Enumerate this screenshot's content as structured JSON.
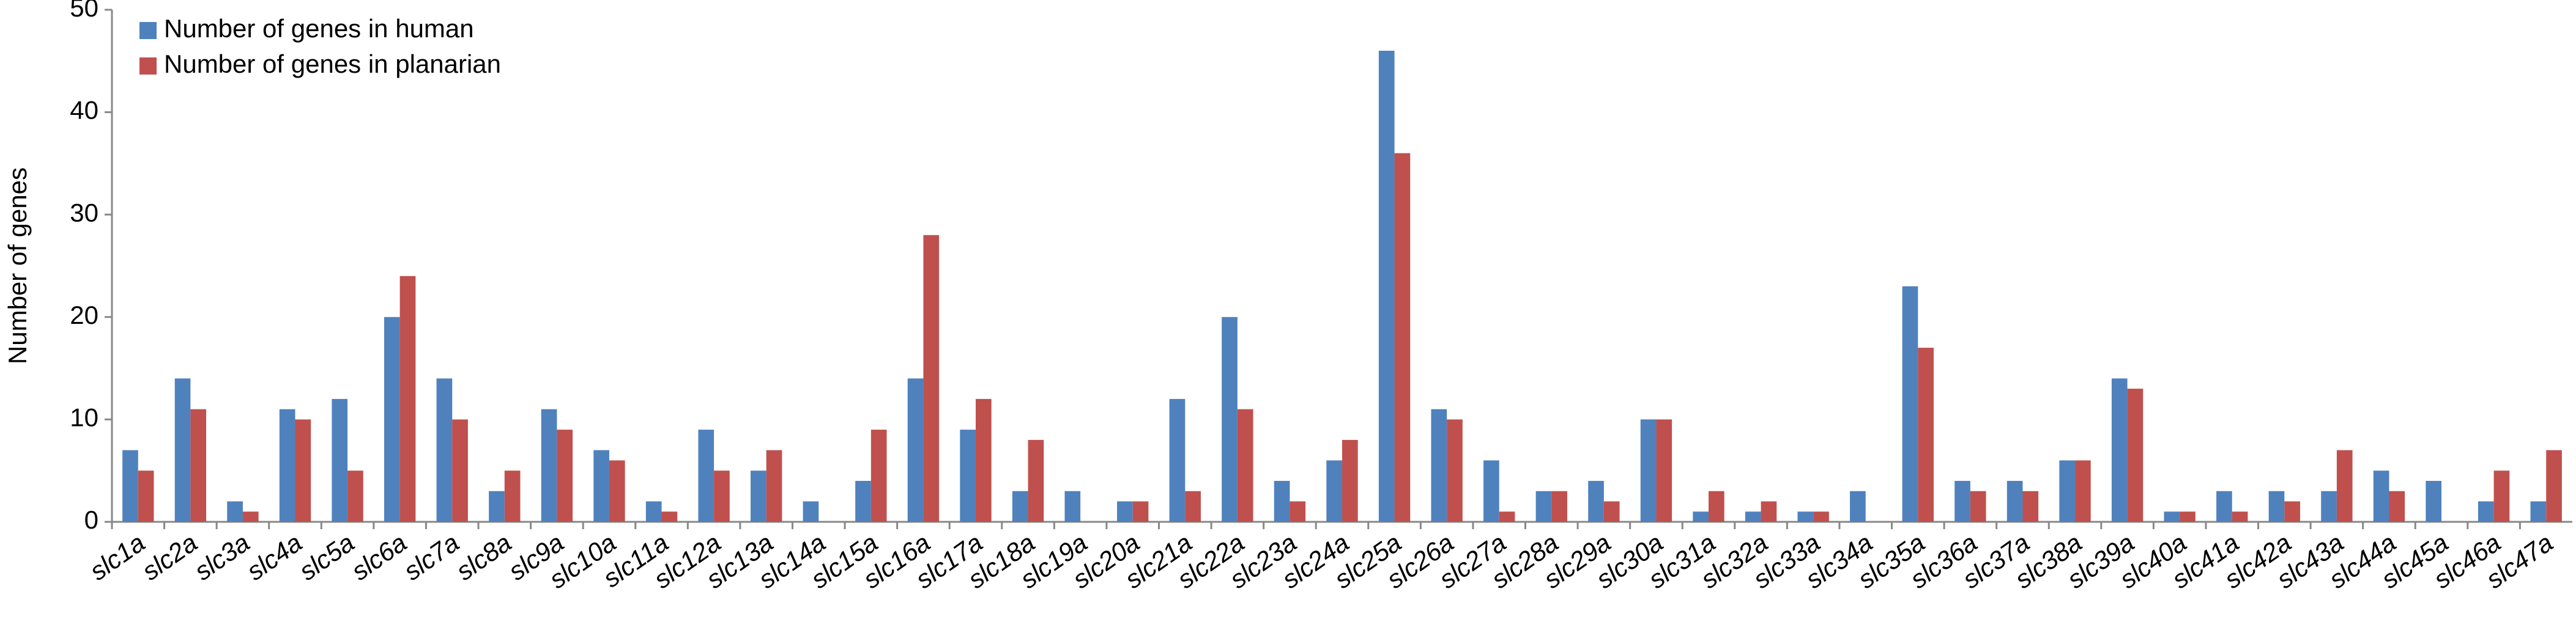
{
  "chart_data": {
    "type": "bar",
    "y_label": "Number of genes",
    "categories": [
      "slc1a",
      "slc2a",
      "slc3a",
      "slc4a",
      "slc5a",
      "slc6a",
      "slc7a",
      "slc8a",
      "slc9a",
      "slc10a",
      "slc11a",
      "slc12a",
      "slc13a",
      "slc14a",
      "slc15a",
      "slc16a",
      "slc17a",
      "slc18a",
      "slc19a",
      "slc20a",
      "slc21a",
      "slc22a",
      "slc23a",
      "slc24a",
      "slc25a",
      "slc26a",
      "slc27a",
      "slc28a",
      "slc29a",
      "slc30a",
      "slc31a",
      "slc32a",
      "slc33a",
      "slc34a",
      "slc35a",
      "slc36a",
      "slc37a",
      "slc38a",
      "slc39a",
      "slc40a",
      "slc41a",
      "slc42a",
      "slc43a",
      "slc44a",
      "slc45a",
      "slc46a",
      "slc47a"
    ],
    "series": [
      {
        "name": "Number of genes in human",
        "color": "#4f81bd",
        "values": [
          7,
          14,
          2,
          11,
          12,
          20,
          14,
          3,
          11,
          7,
          2,
          9,
          5,
          2,
          4,
          14,
          9,
          3,
          3,
          2,
          12,
          20,
          4,
          6,
          46,
          11,
          6,
          3,
          4,
          10,
          1,
          1,
          1,
          3,
          23,
          4,
          4,
          6,
          14,
          1,
          3,
          3,
          3,
          5,
          4,
          2,
          2
        ]
      },
      {
        "name": "Number of genes in planarian",
        "color": "#c0504d",
        "values": [
          5,
          11,
          1,
          10,
          5,
          24,
          10,
          5,
          9,
          6,
          1,
          5,
          7,
          0,
          9,
          28,
          12,
          8,
          0,
          2,
          3,
          11,
          2,
          8,
          36,
          10,
          1,
          3,
          2,
          10,
          3,
          2,
          1,
          0,
          17,
          3,
          3,
          6,
          13,
          1,
          1,
          2,
          7,
          3,
          0,
          5,
          7
        ]
      }
    ],
    "ylim": [
      0,
      50
    ],
    "yticks": [
      0,
      10,
      20,
      30,
      40,
      50
    ],
    "grid": false,
    "legend": "upper left"
  }
}
